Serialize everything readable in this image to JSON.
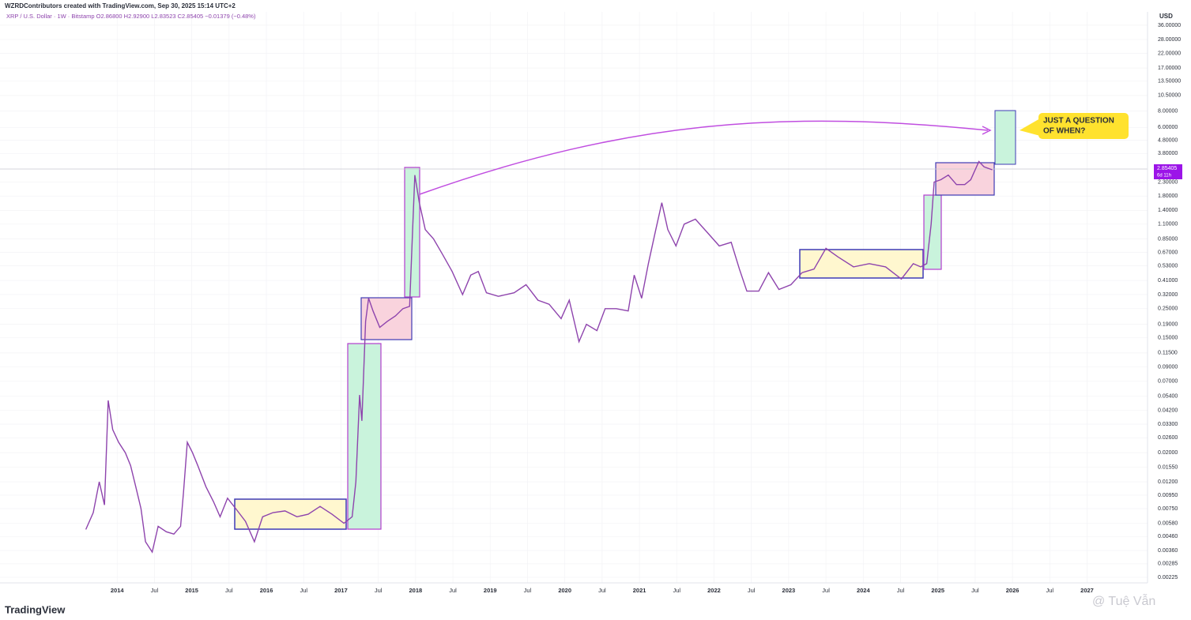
{
  "header": {
    "credit": "WZRDContributors created with TradingView.com, Sep 30, 2025 15:14 UTC+2",
    "legend": "XRP / U.S. Dollar · 1W · Bitstamp  O2.86800  H2.92900  L2.83523  C2.85405  −0.01379 (−0.48%)",
    "currency": "USD",
    "logo": "TradingView",
    "watermark": "@ Tuệ Vẫn"
  },
  "annotations": {
    "callout": [
      "JUST A QUESTION",
      "OF WHEN?"
    ],
    "price_tag": [
      "2.85405",
      "6d 11h"
    ]
  },
  "chart_data": {
    "type": "line",
    "log_scale": true,
    "grid": true,
    "series": [
      {
        "name": "XRP / U.S. Dollar",
        "color": "#8e44ad",
        "x": [
          2013.58,
          2013.68,
          2013.76,
          2013.83,
          2013.88,
          2013.94,
          2014.02,
          2014.11,
          2014.18,
          2014.25,
          2014.32,
          2014.38,
          2014.47,
          2014.55,
          2014.66,
          2014.76,
          2014.85,
          2014.89,
          2014.94,
          2015.01,
          2015.08,
          2015.19,
          2015.29,
          2015.38,
          2015.48,
          2015.59,
          2015.72,
          2015.84,
          2015.95,
          2016.09,
          2016.25,
          2016.41,
          2016.56,
          2016.72,
          2016.88,
          2017.04,
          2017.15,
          2017.2,
          2017.25,
          2017.28,
          2017.33,
          2017.37,
          2017.43,
          2017.52,
          2017.62,
          2017.73,
          2017.83,
          2017.92,
          2017.96,
          2017.99,
          2018.05,
          2018.13,
          2018.24,
          2018.36,
          2018.49,
          2018.63,
          2018.74,
          2018.84,
          2018.95,
          2019.11,
          2019.32,
          2019.48,
          2019.64,
          2019.79,
          2019.95,
          2020.06,
          2020.19,
          2020.29,
          2020.43,
          2020.54,
          2020.69,
          2020.85,
          2020.93,
          2021.03,
          2021.12,
          2021.22,
          2021.3,
          2021.38,
          2021.49,
          2021.6,
          2021.75,
          2021.91,
          2022.07,
          2022.23,
          2022.34,
          2022.44,
          2022.6,
          2022.73,
          2022.87,
          2023.03,
          2023.18,
          2023.34,
          2023.5,
          2023.66,
          2023.87,
          2024.08,
          2024.3,
          2024.51,
          2024.67,
          2024.77,
          2024.85,
          2024.91,
          2024.95,
          2025.04,
          2025.14,
          2025.25,
          2025.36,
          2025.44,
          2025.55,
          2025.62,
          2025.73
        ],
        "values": [
          0.0052,
          0.007,
          0.012,
          0.008,
          0.05,
          0.03,
          0.024,
          0.02,
          0.016,
          0.011,
          0.0075,
          0.0042,
          0.0035,
          0.0055,
          0.005,
          0.0048,
          0.0055,
          0.01,
          0.024,
          0.02,
          0.016,
          0.011,
          0.0085,
          0.0065,
          0.009,
          0.0075,
          0.006,
          0.0042,
          0.0065,
          0.007,
          0.0072,
          0.0065,
          0.0068,
          0.0078,
          0.0068,
          0.0058,
          0.0065,
          0.012,
          0.055,
          0.035,
          0.2,
          0.3,
          0.24,
          0.18,
          0.2,
          0.22,
          0.25,
          0.26,
          1.0,
          2.6,
          1.6,
          1.0,
          0.85,
          0.65,
          0.48,
          0.32,
          0.45,
          0.48,
          0.33,
          0.31,
          0.33,
          0.38,
          0.29,
          0.27,
          0.21,
          0.29,
          0.14,
          0.19,
          0.17,
          0.25,
          0.25,
          0.24,
          0.45,
          0.3,
          0.55,
          1.0,
          1.6,
          1.0,
          0.75,
          1.1,
          1.2,
          0.95,
          0.75,
          0.8,
          0.5,
          0.34,
          0.34,
          0.47,
          0.35,
          0.38,
          0.47,
          0.5,
          0.72,
          0.62,
          0.52,
          0.55,
          0.52,
          0.42,
          0.55,
          0.52,
          0.55,
          1.1,
          2.3,
          2.4,
          2.6,
          2.2,
          2.2,
          2.4,
          3.3,
          3.0,
          2.85
        ]
      }
    ],
    "xlim": [
      2012.43,
      2027.81
    ],
    "xticks": [
      2014,
      {
        "value": 2014.5,
        "label": "Jul"
      },
      2015,
      {
        "value": 2015.5,
        "label": "Jul"
      },
      2016,
      {
        "value": 2016.5,
        "label": "Jul"
      },
      2017,
      {
        "value": 2017.5,
        "label": "Jul"
      },
      2018,
      {
        "value": 2018.5,
        "label": "Jul"
      },
      2019,
      {
        "value": 2019.5,
        "label": "Jul"
      },
      2020,
      {
        "value": 2020.5,
        "label": "Jul"
      },
      2021,
      {
        "value": 2021.5,
        "label": "Jul"
      },
      2022,
      {
        "value": 2022.5,
        "label": "Jul"
      },
      2023,
      {
        "value": 2023.5,
        "label": "Jul"
      },
      2024,
      {
        "value": 2024.5,
        "label": "Jul"
      },
      2025,
      {
        "value": 2025.5,
        "label": "Jul"
      },
      2026,
      {
        "value": 2026.5,
        "label": "Jul"
      },
      2027
    ],
    "ylim": [
      0.00204,
      45.5
    ],
    "yticks": [
      {
        "value": 0.00225,
        "label": "0.00225"
      },
      {
        "value": 0.00285,
        "label": "0.00285"
      },
      {
        "value": 0.0036,
        "label": "0.00360"
      },
      {
        "value": 0.0046,
        "label": "0.00460"
      },
      {
        "value": 0.0058,
        "label": "0.00580"
      },
      {
        "value": 0.0075,
        "label": "0.00750"
      },
      {
        "value": 0.0095,
        "label": "0.00950"
      },
      {
        "value": 0.012,
        "label": "0.01200"
      },
      {
        "value": 0.0155,
        "label": "0.01550"
      },
      {
        "value": 0.02,
        "label": "0.02000"
      },
      {
        "value": 0.026,
        "label": "0.02600"
      },
      {
        "value": 0.033,
        "label": "0.03300"
      },
      {
        "value": 0.042,
        "label": "0.04200"
      },
      {
        "value": 0.054,
        "label": "0.05400"
      },
      {
        "value": 0.07,
        "label": "0.07000"
      },
      {
        "value": 0.09,
        "label": "0.09000"
      },
      {
        "value": 0.115,
        "label": "0.11500"
      },
      {
        "value": 0.15,
        "label": "0.15000"
      },
      {
        "value": 0.19,
        "label": "0.19000"
      },
      {
        "value": 0.25,
        "label": "0.25000"
      },
      {
        "value": 0.32,
        "label": "0.32000"
      },
      {
        "value": 0.41,
        "label": "0.41000"
      },
      {
        "value": 0.53,
        "label": "0.53000"
      },
      {
        "value": 0.67,
        "label": "0.67000"
      },
      {
        "value": 0.85,
        "label": "0.85000"
      },
      {
        "value": 1.1,
        "label": "1.10000"
      },
      {
        "value": 1.4,
        "label": "1.40000"
      },
      {
        "value": 1.8,
        "label": "1.80000"
      },
      {
        "value": 2.3,
        "label": "2.30000"
      },
      {
        "value": 3.8,
        "label": "3.80000"
      },
      {
        "value": 4.8,
        "label": "4.80000"
      },
      {
        "value": 6,
        "label": "6.00000"
      },
      {
        "value": 8,
        "label": "8.00000"
      },
      {
        "value": 10.5,
        "label": "10.50000"
      },
      {
        "value": 13.5,
        "label": "13.50000"
      },
      {
        "value": 17,
        "label": "17.00000"
      },
      {
        "value": 22,
        "label": "22.00000"
      },
      {
        "value": 28,
        "label": "28.00000"
      },
      {
        "value": 36,
        "label": "36.00000"
      }
    ]
  }
}
